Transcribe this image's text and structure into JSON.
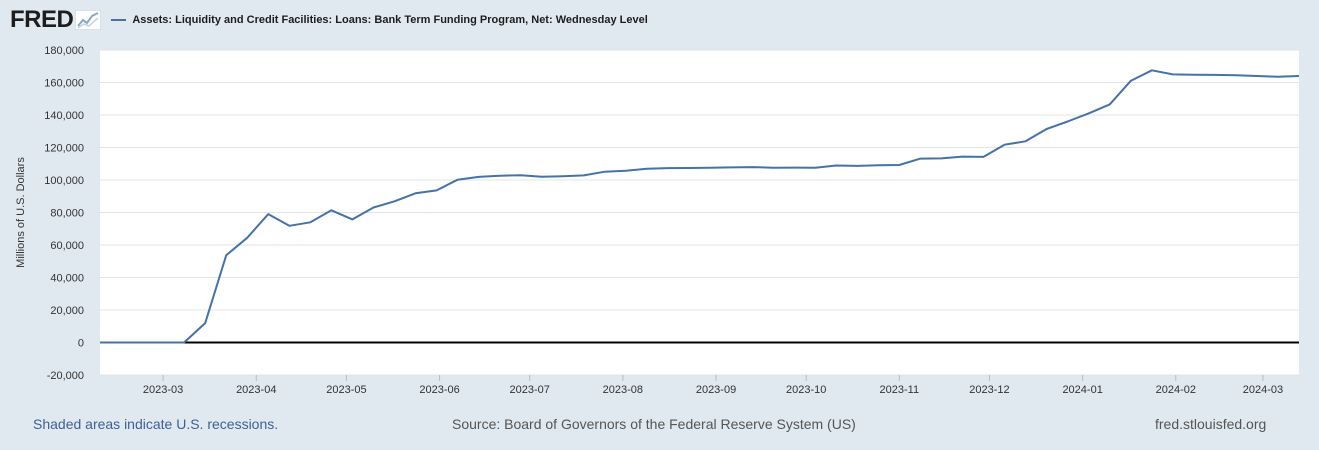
{
  "header": {
    "logo_text": "FRED",
    "logo_icon": "chart-line-icon",
    "series_title": "Assets: Liquidity and Credit Facilities: Loans: Bank Term Funding Program, Net: Wednesday Level"
  },
  "colors": {
    "series": "#4572a7",
    "background": "#e1e9f0",
    "plot_background": "#ffffff",
    "zero_line": "#000000"
  },
  "footer": {
    "recession_note": "Shaded areas indicate U.S. recessions.",
    "source": "Source: Board of Governors of the Federal Reserve System (US)",
    "site": "fred.stlouisfed.org"
  },
  "chart_data": {
    "type": "line",
    "ylabel": "Millions of U.S. Dollars",
    "ylim": [
      -20000,
      180000
    ],
    "yticks": [
      -20000,
      0,
      20000,
      40000,
      60000,
      80000,
      100000,
      120000,
      140000,
      160000,
      180000
    ],
    "ytick_labels": [
      "-20,000",
      "0",
      "20,000",
      "40,000",
      "60,000",
      "80,000",
      "100,000",
      "120,000",
      "140,000",
      "160,000",
      "180,000"
    ],
    "xlim": [
      "2023-02-08",
      "2024-03-13"
    ],
    "xticks": [
      "2023-03-01",
      "2023-04-01",
      "2023-05-01",
      "2023-06-01",
      "2023-07-01",
      "2023-08-01",
      "2023-09-01",
      "2023-10-01",
      "2023-11-01",
      "2023-12-01",
      "2024-01-01",
      "2024-02-01",
      "2024-03-01"
    ],
    "xtick_labels": [
      "2023-03",
      "2023-04",
      "2023-05",
      "2023-06",
      "2023-07",
      "2023-08",
      "2023-09",
      "2023-10",
      "2023-11",
      "2023-12",
      "2024-01",
      "2024-02",
      "2024-03"
    ],
    "grid": true,
    "legend": "top-left",
    "series": [
      {
        "name": "Assets: Liquidity and Credit Facilities: Loans: Bank Term Funding Program, Net: Wednesday Level",
        "x": [
          "2023-02-08",
          "2023-02-15",
          "2023-02-22",
          "2023-03-01",
          "2023-03-08",
          "2023-03-15",
          "2023-03-22",
          "2023-03-29",
          "2023-04-05",
          "2023-04-12",
          "2023-04-19",
          "2023-04-26",
          "2023-05-03",
          "2023-05-10",
          "2023-05-17",
          "2023-05-24",
          "2023-05-31",
          "2023-06-07",
          "2023-06-14",
          "2023-06-21",
          "2023-06-28",
          "2023-07-05",
          "2023-07-12",
          "2023-07-19",
          "2023-07-26",
          "2023-08-02",
          "2023-08-09",
          "2023-08-16",
          "2023-08-23",
          "2023-08-30",
          "2023-09-06",
          "2023-09-13",
          "2023-09-20",
          "2023-09-27",
          "2023-10-04",
          "2023-10-11",
          "2023-10-18",
          "2023-10-25",
          "2023-11-01",
          "2023-11-08",
          "2023-11-15",
          "2023-11-22",
          "2023-11-29",
          "2023-12-06",
          "2023-12-13",
          "2023-12-20",
          "2023-12-27",
          "2024-01-03",
          "2024-01-10",
          "2024-01-17",
          "2024-01-24",
          "2024-01-31",
          "2024-02-07",
          "2024-02-14",
          "2024-02-21",
          "2024-02-28",
          "2024-03-06",
          "2024-03-13"
        ],
        "values": [
          0,
          0,
          0,
          0,
          0,
          11943,
          53669,
          64403,
          79020,
          71837,
          73981,
          81350,
          75776,
          83058,
          86899,
          91785,
          93580,
          100162,
          101934,
          102674,
          102961,
          102056,
          102335,
          102846,
          105080,
          105744,
          106930,
          107326,
          107392,
          107524,
          107772,
          107957,
          107589,
          107642,
          107596,
          108929,
          108683,
          109067,
          109216,
          113184,
          113278,
          114422,
          114200,
          121700,
          123833,
          131400,
          136000,
          141000,
          146500,
          161000,
          167500,
          165000,
          164800,
          164700,
          164400,
          164000,
          163500,
          164000
        ]
      }
    ]
  }
}
